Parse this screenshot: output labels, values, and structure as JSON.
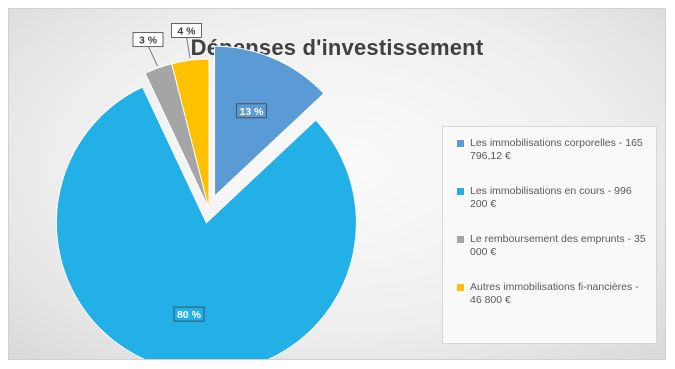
{
  "chart_data": {
    "type": "pie",
    "title": "Dépenses d'investissement",
    "slices": [
      {
        "label": "Les immobilisations corporelles - 165 796,12 €",
        "value": 13,
        "data_label": "13 %",
        "color": "#5b9bd5",
        "exploded": true
      },
      {
        "label": "Les immobilisations en cours - 996 200 €",
        "value": 80,
        "data_label": "80 %",
        "color": "#22b0e6",
        "exploded": true
      },
      {
        "label": "Le remboursement des emprunts - 35 000 €",
        "value": 3,
        "data_label": "3 %",
        "color": "#a5a5a5",
        "exploded": false
      },
      {
        "label": "Autres immobilisations fi-nancières - 46 800 €",
        "value": 4,
        "data_label": "4 %",
        "color": "#ffc000",
        "exploded": false
      }
    ],
    "legend_position": "right"
  }
}
